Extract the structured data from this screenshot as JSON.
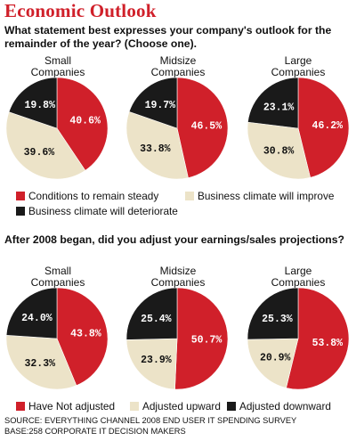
{
  "title": "Economic Outlook",
  "colors": {
    "red": "#d0202a",
    "beige": "#ece3c8",
    "black": "#1a1a1a",
    "title": "#d0202a"
  },
  "source": {
    "line1": "SOURCE: EVERYTHING CHANNEL 2008 END USER IT SPENDING SURVEY",
    "line2": "BASE:258 CORPORATE IT DECISION MAKERS"
  },
  "chart_data": [
    {
      "type": "pie",
      "question": "What statement best expresses your company's outlook for the remainder of the year? (Choose one).",
      "legend": [
        {
          "label": "Conditions to remain steady",
          "color": "red"
        },
        {
          "label": "Business climate will improve",
          "color": "beige"
        },
        {
          "label": "Business climate will deteriorate",
          "color": "black"
        }
      ],
      "pies": [
        {
          "title_line1": "Small",
          "title_line2": "Companies",
          "values": [
            40.6,
            39.6,
            19.8
          ],
          "labels": [
            "40.6%",
            "39.6%",
            "19.8%"
          ]
        },
        {
          "title_line1": "Midsize",
          "title_line2": "Companies",
          "values": [
            46.5,
            33.8,
            19.7
          ],
          "labels": [
            "46.5%",
            "33.8%",
            "19.7%"
          ]
        },
        {
          "title_line1": "Large",
          "title_line2": "Companies",
          "values": [
            46.2,
            30.8,
            23.1
          ],
          "labels": [
            "46.2%",
            "30.8%",
            "23.1%"
          ]
        }
      ]
    },
    {
      "type": "pie",
      "question": "After 2008 began, did you adjust your earnings/sales projections?",
      "legend": [
        {
          "label": "Have Not adjusted",
          "color": "red"
        },
        {
          "label": "Adjusted upward",
          "color": "beige"
        },
        {
          "label": "Adjusted downward",
          "color": "black"
        }
      ],
      "pies": [
        {
          "title_line1": "Small",
          "title_line2": "Companies",
          "values": [
            43.8,
            32.3,
            24.0
          ],
          "labels": [
            "43.8%",
            "32.3%",
            "24.0%"
          ]
        },
        {
          "title_line1": "Midsize",
          "title_line2": "Companies",
          "values": [
            50.7,
            23.9,
            25.4
          ],
          "labels": [
            "50.7%",
            "23.9%",
            "25.4%"
          ]
        },
        {
          "title_line1": "Large",
          "title_line2": "Companies",
          "values": [
            53.8,
            20.9,
            25.3
          ],
          "labels": [
            "53.8%",
            "20.9%",
            "25.3%"
          ]
        }
      ]
    }
  ]
}
